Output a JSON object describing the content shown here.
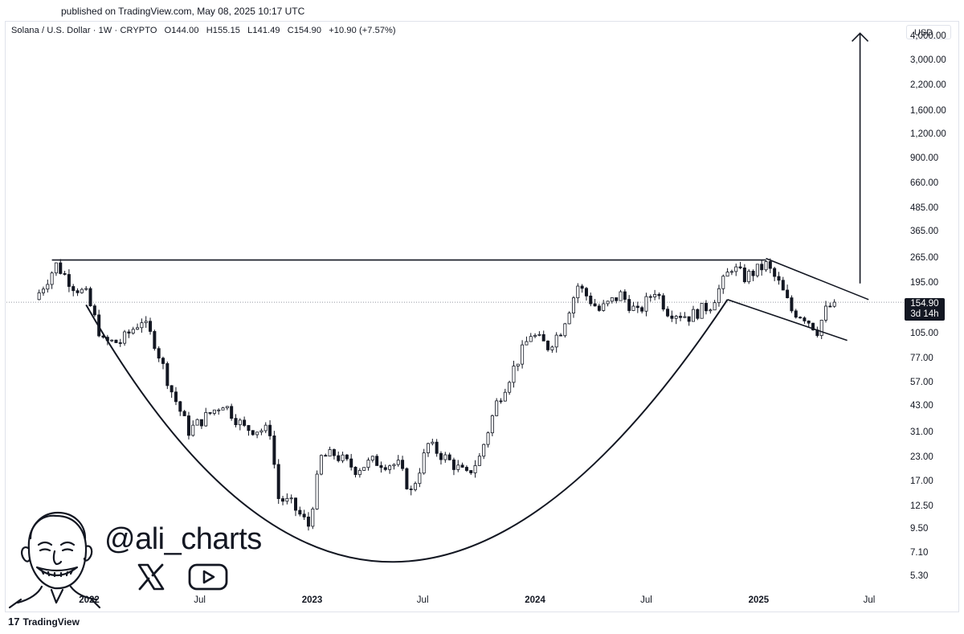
{
  "published": "published on TradingView.com, May 08, 2025 10:17 UTC",
  "legend": {
    "symbol": "Solana / U.S. Dollar · 1W · CRYPTO",
    "open": "O144.00",
    "high": "H155.15",
    "low": "L141.49",
    "close": "C154.90",
    "change": "+10.90 (+7.57%)"
  },
  "currency": "USD",
  "price_tag": {
    "price": "154.90",
    "countdown": "3d 14h"
  },
  "brand": {
    "handle": "@ali_charts",
    "x_icon": "x-logo-icon",
    "yt_icon": "youtube-play-icon"
  },
  "footer": {
    "logo": "tradingview-logo-icon",
    "name": "TradingView"
  },
  "chart_data": {
    "type": "candlestick",
    "scale": "log",
    "ylim": [
      4.5,
      4700
    ],
    "y_ticks": [
      "4,000.00",
      "3,000.00",
      "2,200.00",
      "1,600.00",
      "1,200.00",
      "900.00",
      "660.00",
      "485.00",
      "365.00",
      "265.00",
      "195.00",
      "105.00",
      "77.00",
      "57.00",
      "43.00",
      "31.00",
      "23.00",
      "17.00",
      "12.50",
      "9.50",
      "7.10",
      "5.30"
    ],
    "x_ticks": [
      {
        "label": "2022",
        "bold": true,
        "date": "2022-01-01"
      },
      {
        "label": "Jul",
        "bold": false,
        "date": "2022-07-01"
      },
      {
        "label": "2023",
        "bold": true,
        "date": "2023-01-01"
      },
      {
        "label": "Jul",
        "bold": false,
        "date": "2023-07-01"
      },
      {
        "label": "2024",
        "bold": true,
        "date": "2024-01-01"
      },
      {
        "label": "Jul",
        "bold": false,
        "date": "2024-07-01"
      },
      {
        "label": "2025",
        "bold": true,
        "date": "2025-01-01"
      },
      {
        "label": "Jul",
        "bold": false,
        "date": "2025-07-01"
      }
    ],
    "last_price": 154.9,
    "close_path": [
      [
        "2021-10-04",
        160
      ],
      [
        "2021-11-08",
        245
      ],
      [
        "2021-12-06",
        190
      ],
      [
        "2021-12-27",
        170
      ],
      [
        "2022-01-24",
        95
      ],
      [
        "2022-02-21",
        95
      ],
      [
        "2022-03-28",
        125
      ],
      [
        "2022-04-18",
        95
      ],
      [
        "2022-05-16",
        52
      ],
      [
        "2022-06-13",
        32
      ],
      [
        "2022-07-11",
        38
      ],
      [
        "2022-08-08",
        45
      ],
      [
        "2022-09-12",
        33
      ],
      [
        "2022-10-24",
        32
      ],
      [
        "2022-11-07",
        14
      ],
      [
        "2022-11-28",
        13
      ],
      [
        "2022-12-26",
        10
      ],
      [
        "2023-01-16",
        23
      ],
      [
        "2023-02-06",
        24
      ],
      [
        "2023-03-13",
        20
      ],
      [
        "2023-04-10",
        22
      ],
      [
        "2023-05-22",
        21
      ],
      [
        "2023-06-12",
        15
      ],
      [
        "2023-07-10",
        27
      ],
      [
        "2023-08-14",
        22
      ],
      [
        "2023-09-11",
        18.5
      ],
      [
        "2023-10-02",
        23
      ],
      [
        "2023-10-30",
        45
      ],
      [
        "2023-11-20",
        62
      ],
      [
        "2023-12-25",
        105
      ],
      [
        "2024-01-22",
        90
      ],
      [
        "2024-02-12",
        110
      ],
      [
        "2024-03-11",
        190
      ],
      [
        "2024-04-15",
        140
      ],
      [
        "2024-05-20",
        170
      ],
      [
        "2024-06-17",
        135
      ],
      [
        "2024-07-15",
        180
      ],
      [
        "2024-08-05",
        140
      ],
      [
        "2024-09-09",
        130
      ],
      [
        "2024-10-14",
        150
      ],
      [
        "2024-11-18",
        240
      ],
      [
        "2024-12-09",
        210
      ],
      [
        "2025-01-13",
        245
      ],
      [
        "2025-02-03",
        195
      ],
      [
        "2025-02-24",
        140
      ],
      [
        "2025-03-17",
        130
      ],
      [
        "2025-04-07",
        110
      ],
      [
        "2025-04-21",
        140
      ],
      [
        "2025-05-05",
        154.9
      ]
    ],
    "annotations": {
      "resistance_line": [
        [
          "2021-11-01",
          260
        ],
        [
          "2025-01-13",
          260
        ]
      ],
      "cup_curve": [
        [
          "2021-12-27",
          150
        ],
        [
          "2023-05-15",
          6.4
        ],
        [
          "2024-11-11",
          160
        ]
      ],
      "flag_upper": [
        [
          "2025-01-13",
          265
        ],
        [
          "2025-06-30",
          160
        ]
      ],
      "flag_lower": [
        [
          "2024-11-11",
          160
        ],
        [
          "2025-05-26",
          97
        ]
      ],
      "target_arrow": [
        [
          "2025-06-16",
          195
        ],
        [
          "2025-06-16",
          4200
        ]
      ]
    }
  }
}
